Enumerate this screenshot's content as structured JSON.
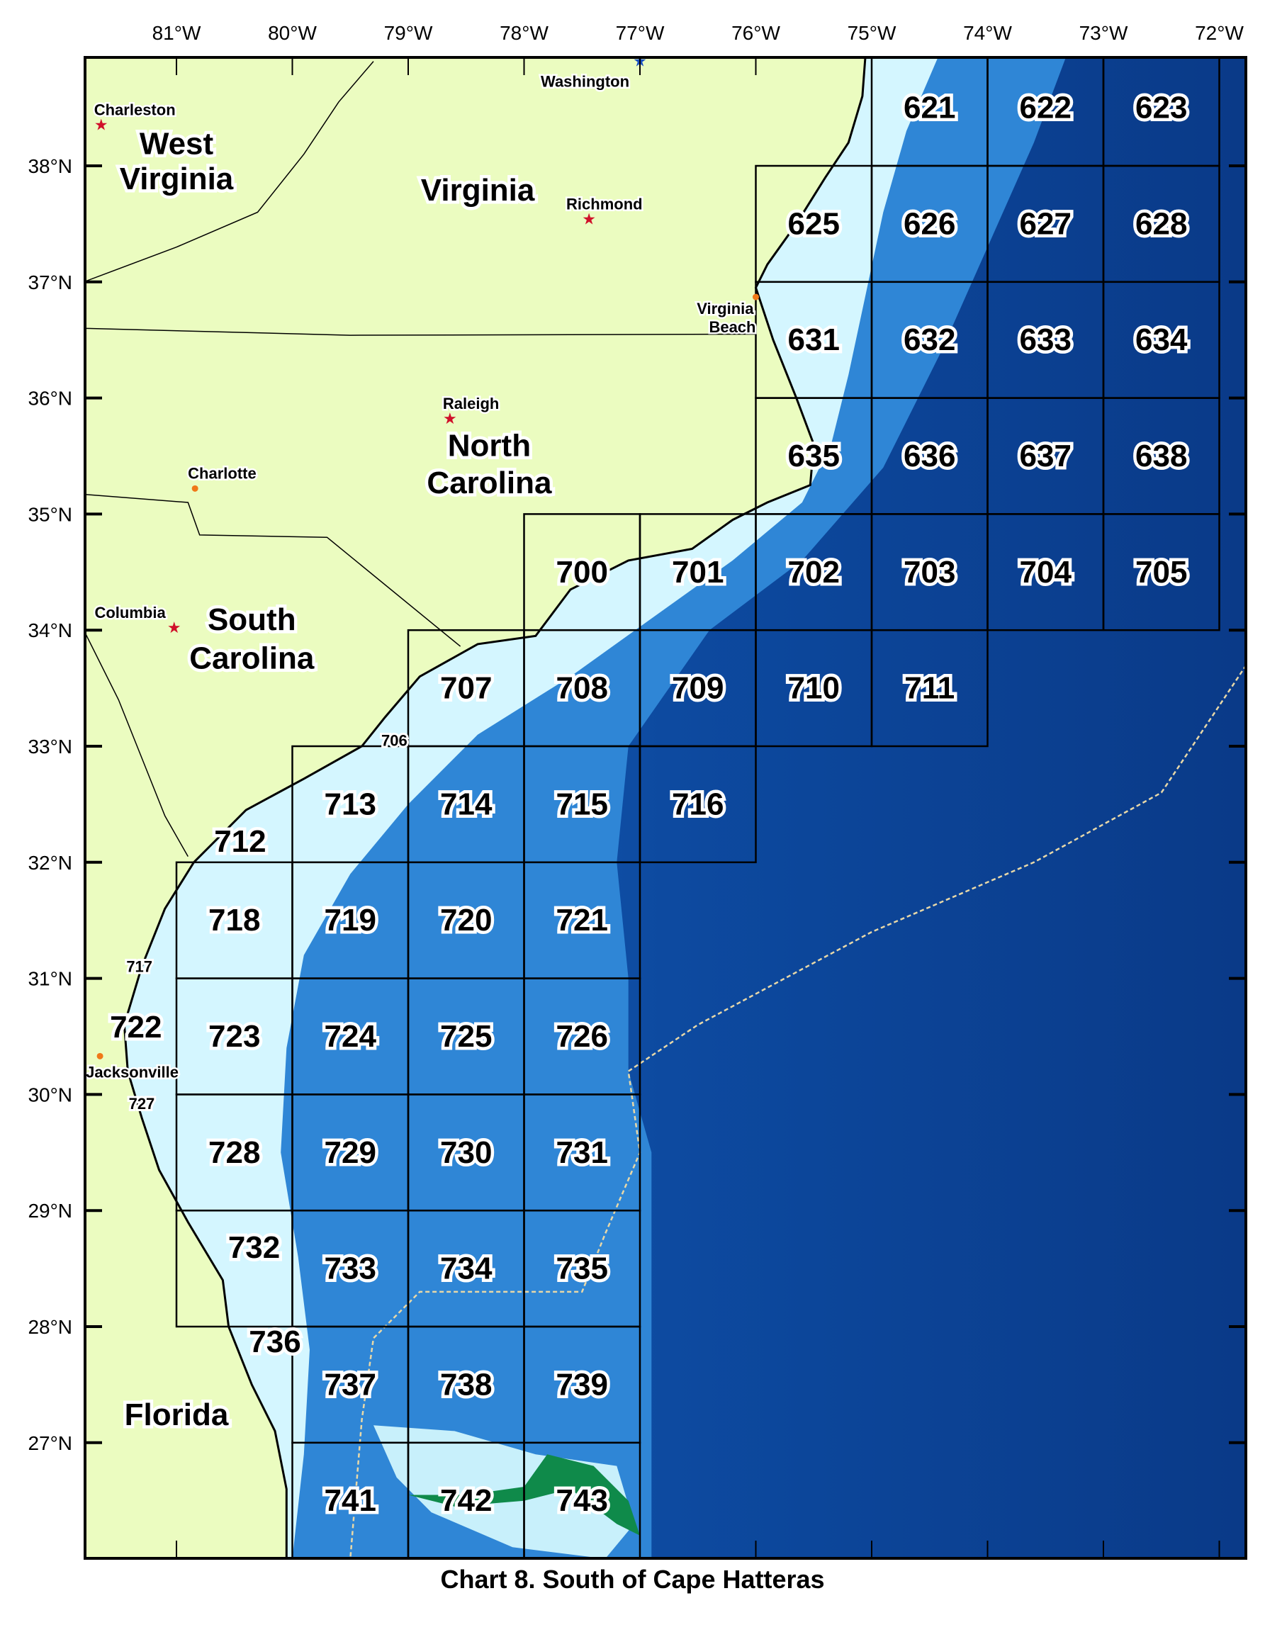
{
  "title": "Chart 8.  South of Cape Hatteras",
  "axes": {
    "lon_ticks": [
      "81°W",
      "80°W",
      "79°W",
      "78°W",
      "77°W",
      "76°W",
      "75°W",
      "74°W",
      "73°W",
      "72°W"
    ],
    "lat_ticks": [
      "38°N",
      "37°N",
      "36°N",
      "35°N",
      "34°N",
      "33°N",
      "32°N",
      "31°N",
      "30°N",
      "29°N",
      "28°N",
      "27°N"
    ]
  },
  "colors": {
    "land": "#ebfcc0",
    "shelf": "#d4f6ff",
    "slope": "#2f86d6",
    "deep": "#0a3f95",
    "bank_land": "#0f8a4a"
  },
  "states": [
    {
      "name": "West",
      "lon": 81.0,
      "lat": 38.1
    },
    {
      "name": "Virginia",
      "lon": 81.0,
      "lat": 37.8
    },
    {
      "name": "Virginia",
      "lon": 78.4,
      "lat": 37.7
    },
    {
      "name": "North",
      "lon": 78.3,
      "lat": 35.5
    },
    {
      "name": "Carolina",
      "lon": 78.3,
      "lat": 35.18
    },
    {
      "name": "South",
      "lon": 80.35,
      "lat": 34.0
    },
    {
      "name": "Carolina",
      "lon": 80.35,
      "lat": 33.67
    },
    {
      "name": "Florida",
      "lon": 81.0,
      "lat": 27.15
    }
  ],
  "cities": [
    {
      "name": "Charleston",
      "lon": 81.65,
      "lat": 38.35,
      "marker": "star",
      "color": "#d0102a"
    },
    {
      "name": "Washington",
      "lon": 77.0,
      "lat": 38.9,
      "marker": "star",
      "color": "#1a4fc0"
    },
    {
      "name": "Richmond",
      "lon": 77.44,
      "lat": 37.54,
      "marker": "star",
      "color": "#d0102a"
    },
    {
      "name": "Virginia",
      "lon": 76.0,
      "lat": 36.87,
      "marker": "dot",
      "color": "#f07818"
    },
    {
      "name": "Beach",
      "lon": 76.0,
      "lat": 36.87,
      "marker": "none",
      "color": "#f07818"
    },
    {
      "name": "Raleigh",
      "lon": 78.64,
      "lat": 35.82,
      "marker": "star",
      "color": "#d0102a"
    },
    {
      "name": "Charlotte",
      "lon": 80.84,
      "lat": 35.22,
      "marker": "dot",
      "color": "#f07818"
    },
    {
      "name": "Columbia",
      "lon": 81.02,
      "lat": 34.02,
      "marker": "star",
      "color": "#d0102a"
    },
    {
      "name": "Jacksonville",
      "lon": 81.66,
      "lat": 30.33,
      "marker": "dot",
      "color": "#f07818"
    }
  ],
  "cells": [
    {
      "id": "621",
      "w": 75,
      "s": 38
    },
    {
      "id": "622",
      "w": 74,
      "s": 38
    },
    {
      "id": "623",
      "w": 73,
      "s": 38
    },
    {
      "id": "625",
      "w": 76,
      "s": 37
    },
    {
      "id": "626",
      "w": 75,
      "s": 37
    },
    {
      "id": "627",
      "w": 74,
      "s": 37
    },
    {
      "id": "628",
      "w": 73,
      "s": 37
    },
    {
      "id": "631",
      "w": 76,
      "s": 36
    },
    {
      "id": "632",
      "w": 75,
      "s": 36
    },
    {
      "id": "633",
      "w": 74,
      "s": 36
    },
    {
      "id": "634",
      "w": 73,
      "s": 36
    },
    {
      "id": "635",
      "w": 76,
      "s": 35
    },
    {
      "id": "636",
      "w": 75,
      "s": 35
    },
    {
      "id": "637",
      "w": 74,
      "s": 35
    },
    {
      "id": "638",
      "w": 73,
      "s": 35
    },
    {
      "id": "700",
      "w": 78,
      "s": 34
    },
    {
      "id": "701",
      "w": 77,
      "s": 34
    },
    {
      "id": "702",
      "w": 76,
      "s": 34
    },
    {
      "id": "703",
      "w": 75,
      "s": 34
    },
    {
      "id": "704",
      "w": 74,
      "s": 34
    },
    {
      "id": "705",
      "w": 73,
      "s": 34
    },
    {
      "id": "707",
      "w": 79,
      "s": 33
    },
    {
      "id": "708",
      "w": 78,
      "s": 33
    },
    {
      "id": "709",
      "w": 77,
      "s": 33
    },
    {
      "id": "710",
      "w": 76,
      "s": 33
    },
    {
      "id": "711",
      "w": 75,
      "s": 33
    },
    {
      "id": "713",
      "w": 80,
      "s": 32
    },
    {
      "id": "714",
      "w": 79,
      "s": 32
    },
    {
      "id": "715",
      "w": 78,
      "s": 32
    },
    {
      "id": "716",
      "w": 77,
      "s": 32
    },
    {
      "id": "718",
      "w": 81,
      "s": 31
    },
    {
      "id": "719",
      "w": 80,
      "s": 31
    },
    {
      "id": "720",
      "w": 79,
      "s": 31
    },
    {
      "id": "721",
      "w": 78,
      "s": 31
    },
    {
      "id": "723",
      "w": 81,
      "s": 30
    },
    {
      "id": "724",
      "w": 80,
      "s": 30
    },
    {
      "id": "725",
      "w": 79,
      "s": 30
    },
    {
      "id": "726",
      "w": 78,
      "s": 30
    },
    {
      "id": "728",
      "w": 81,
      "s": 29
    },
    {
      "id": "729",
      "w": 80,
      "s": 29
    },
    {
      "id": "730",
      "w": 79,
      "s": 29
    },
    {
      "id": "731",
      "w": 78,
      "s": 29
    },
    {
      "id": "732",
      "w": 81,
      "s": 28
    },
    {
      "id": "733",
      "w": 80,
      "s": 28
    },
    {
      "id": "734",
      "w": 79,
      "s": 28
    },
    {
      "id": "735",
      "w": 78,
      "s": 28
    },
    {
      "id": "737",
      "w": 80,
      "s": 27
    },
    {
      "id": "738",
      "w": 79,
      "s": 27
    },
    {
      "id": "739",
      "w": 78,
      "s": 27
    },
    {
      "id": "741",
      "w": 80,
      "s": 26
    },
    {
      "id": "742",
      "w": 79,
      "s": 26
    },
    {
      "id": "743",
      "w": 78,
      "s": 26
    }
  ],
  "coastal_labels": [
    {
      "id": "706",
      "lon": 79.12,
      "lat": 33.05,
      "small": true
    },
    {
      "id": "712",
      "lon": 80.45,
      "lat": 32.18,
      "small": false
    },
    {
      "id": "717",
      "lon": 81.32,
      "lat": 31.1,
      "small": true
    },
    {
      "id": "722",
      "lon": 81.35,
      "lat": 30.58,
      "small": false
    },
    {
      "id": "727",
      "lon": 81.3,
      "lat": 29.92,
      "small": true
    },
    {
      "id": "732",
      "lon": 80.33,
      "lat": 28.68,
      "small": false
    },
    {
      "id": "736",
      "lon": 80.15,
      "lat": 27.87,
      "small": false
    }
  ]
}
